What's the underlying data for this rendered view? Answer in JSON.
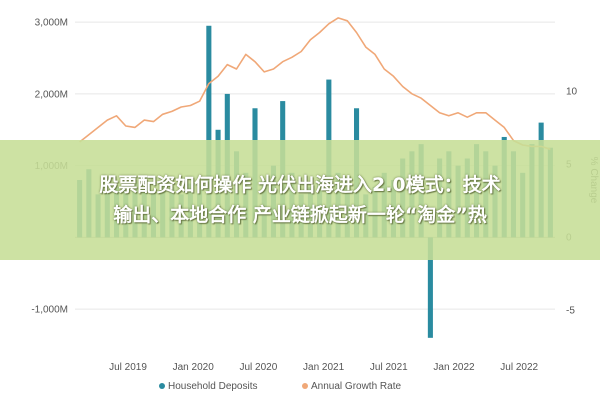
{
  "banner": {
    "line1": "股票配资如何操作 光伏出海进入2.0模式：技术",
    "line2": "输出、本地合作 产业链掀起新一轮“淘金”热"
  },
  "chart_data": {
    "type": "bar",
    "title": "",
    "xlabel": "",
    "ylabel": "",
    "y2label": "% Change",
    "colors": {
      "bars": "#2a8ba0",
      "line": "#f0a878",
      "grid": "#e6e6e6",
      "zero": "#bfbfbf"
    },
    "x_ticks": [
      "Jul 2019",
      "Jan 2020",
      "Jul 2020",
      "Jan 2021",
      "Jul 2021",
      "Jan 2022",
      "Jul 2022"
    ],
    "y_ticks": [
      "3,000M",
      "2,000M",
      "1,000M",
      "-1,000M"
    ],
    "y_tick_values": [
      3000,
      2000,
      1000,
      -1000
    ],
    "y2_ticks": [
      "10",
      "5",
      "0",
      "-5"
    ],
    "y2_tick_values": [
      10,
      5,
      0,
      -5
    ],
    "ylim": [
      -1500,
      3100
    ],
    "y2lim": [
      -7.4,
      15.2
    ],
    "legend": {
      "position": "bottom",
      "entries": [
        "Household Deposits",
        "Annual Growth Rate"
      ]
    },
    "series": [
      {
        "name": "Household Deposits",
        "type": "bar",
        "axis": "left",
        "values": [
          800,
          950,
          600,
          650,
          700,
          750,
          800,
          700,
          650,
          800,
          700,
          600,
          750,
          700,
          2950,
          1500,
          2000,
          1200,
          900,
          1800,
          800,
          1000,
          1900,
          900,
          600,
          700,
          800,
          2200,
          900,
          700,
          1800,
          600,
          700,
          900,
          800,
          1100,
          1200,
          1300,
          -1400,
          1100,
          1200,
          1000,
          1100,
          1300,
          1200,
          1000,
          1400,
          1200,
          900,
          1300,
          1600,
          1250
        ]
      },
      {
        "name": "Annual Growth Rate",
        "type": "line",
        "axis": "right",
        "values": [
          6.5,
          7,
          7.5,
          8,
          8.3,
          7.6,
          7.5,
          8,
          7.9,
          8.4,
          8.6,
          8.9,
          9,
          9.3,
          10.5,
          11,
          11.8,
          11.5,
          12.5,
          12,
          11.3,
          11.5,
          12,
          12.3,
          12.7,
          13.5,
          14,
          14.6,
          15,
          14.8,
          14,
          13,
          12.5,
          11.5,
          11,
          10.3,
          9.8,
          9.5,
          9,
          8.5,
          8.3,
          8.5,
          8.2,
          8.5,
          8.5,
          8,
          7.5,
          6.6,
          6.3,
          6.2,
          6.2,
          6
        ]
      }
    ]
  }
}
